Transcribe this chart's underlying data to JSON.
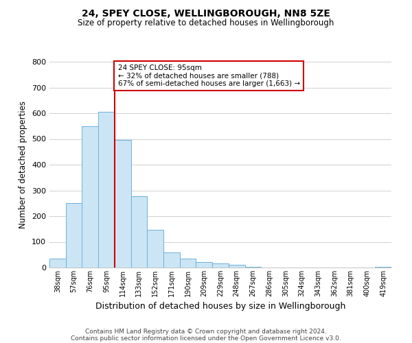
{
  "title": "24, SPEY CLOSE, WELLINGBOROUGH, NN8 5ZE",
  "subtitle": "Size of property relative to detached houses in Wellingborough",
  "xlabel": "Distribution of detached houses by size in Wellingborough",
  "ylabel": "Number of detached properties",
  "footer_line1": "Contains HM Land Registry data © Crown copyright and database right 2024.",
  "footer_line2": "Contains public sector information licensed under the Open Government Licence v3.0.",
  "categories": [
    "38sqm",
    "57sqm",
    "76sqm",
    "95sqm",
    "114sqm",
    "133sqm",
    "152sqm",
    "171sqm",
    "190sqm",
    "209sqm",
    "229sqm",
    "248sqm",
    "267sqm",
    "286sqm",
    "305sqm",
    "324sqm",
    "343sqm",
    "362sqm",
    "381sqm",
    "400sqm",
    "419sqm"
  ],
  "values": [
    35,
    250,
    550,
    605,
    495,
    278,
    148,
    60,
    35,
    22,
    15,
    10,
    3,
    1,
    1,
    1,
    1,
    1,
    1,
    1,
    2
  ],
  "bar_color": "#cce5f5",
  "bar_edge_color": "#6ab0dc",
  "vline_x_index": 3,
  "vline_color": "#cc0000",
  "annotation_box_text": "24 SPEY CLOSE: 95sqm\n← 32% of detached houses are smaller (788)\n67% of semi-detached houses are larger (1,663) →",
  "annotation_box_edge_color": "#cc0000",
  "ylim": [
    0,
    800
  ],
  "yticks": [
    0,
    100,
    200,
    300,
    400,
    500,
    600,
    700,
    800
  ],
  "background_color": "#ffffff",
  "grid_color": "#d0d0d0"
}
